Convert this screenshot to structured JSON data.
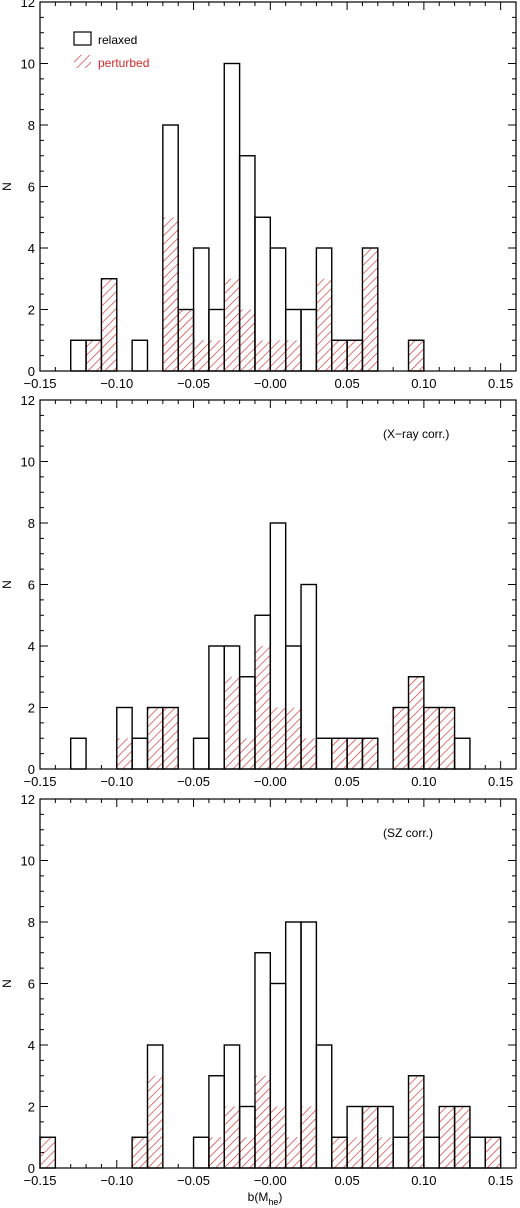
{
  "colors": {
    "relaxed": "#000000",
    "perturbed": "#d42a2a",
    "legend_perturbed_text": "#d42a2a"
  },
  "legend": {
    "relaxed_label": "relaxed",
    "perturbed_label": "perturbed"
  },
  "chart_data": [
    {
      "type": "bar",
      "subtype": "histogram",
      "annotation": "",
      "ylabel": "N",
      "xlabel": "",
      "xlim": [
        -0.15,
        0.16
      ],
      "ylim": [
        0,
        12
      ],
      "xticks": [
        -0.15,
        -0.1,
        -0.05,
        0.0,
        0.05,
        0.1,
        0.15
      ],
      "xtick_labels": [
        "−0.15",
        "−0.10",
        "−0.05",
        "−0.00",
        "0.05",
        "0.10",
        "0.15"
      ],
      "yticks": [
        0,
        2,
        4,
        6,
        8,
        10,
        12
      ],
      "bin_width": 0.01,
      "series": [
        {
          "name": "relaxed",
          "style": "step-outline",
          "bin_starts": [
            -0.13,
            -0.12,
            -0.11,
            -0.09,
            -0.07,
            -0.06,
            -0.05,
            -0.04,
            -0.03,
            -0.02,
            -0.01,
            0.0,
            0.01,
            0.02,
            0.03,
            0.04,
            0.05,
            0.06,
            0.09
          ],
          "values": [
            1,
            1,
            3,
            1,
            8,
            2,
            4,
            2,
            10,
            7,
            5,
            4,
            2,
            2,
            4,
            1,
            1,
            4,
            1
          ]
        },
        {
          "name": "perturbed",
          "style": "hatched",
          "bin_starts": [
            -0.12,
            -0.11,
            -0.07,
            -0.06,
            -0.05,
            -0.04,
            -0.03,
            -0.02,
            -0.01,
            0.0,
            0.01,
            0.03,
            0.04,
            0.05,
            0.06,
            0.09
          ],
          "values": [
            1,
            3,
            5,
            2,
            1,
            1,
            3,
            2,
            1,
            1,
            1,
            3,
            1,
            1,
            4,
            1
          ]
        }
      ]
    },
    {
      "type": "bar",
      "subtype": "histogram",
      "annotation": "(X−ray corr.)",
      "ylabel": "N",
      "xlabel": "",
      "xlim": [
        -0.15,
        0.16
      ],
      "ylim": [
        0,
        12
      ],
      "xticks": [
        -0.15,
        -0.1,
        -0.05,
        0.0,
        0.05,
        0.1,
        0.15
      ],
      "xtick_labels": [
        "−0.15",
        "−0.10",
        "−0.05",
        "−0.00",
        "0.05",
        "0.10",
        "0.15"
      ],
      "yticks": [
        0,
        2,
        4,
        6,
        8,
        10,
        12
      ],
      "bin_width": 0.01,
      "series": [
        {
          "name": "relaxed",
          "style": "step-outline",
          "bin_starts": [
            -0.13,
            -0.1,
            -0.09,
            -0.08,
            -0.07,
            -0.05,
            -0.04,
            -0.03,
            -0.02,
            -0.01,
            0.0,
            0.01,
            0.02,
            0.03,
            0.04,
            0.05,
            0.06,
            0.08,
            0.09,
            0.1,
            0.11,
            0.12
          ],
          "values": [
            1,
            2,
            1,
            2,
            2,
            1,
            4,
            4,
            3,
            5,
            8,
            4,
            6,
            1,
            1,
            1,
            1,
            2,
            3,
            2,
            2,
            1
          ],
          "note": "outline drawn as a step curve; zero-height bins included implicitly"
        },
        {
          "name": "perturbed",
          "style": "hatched",
          "bin_starts": [
            -0.1,
            -0.08,
            -0.07,
            -0.03,
            -0.02,
            -0.01,
            0.0,
            0.01,
            0.02,
            0.04,
            0.05,
            0.06,
            0.08,
            0.09,
            0.1,
            0.11
          ],
          "values": [
            1,
            2,
            2,
            3,
            1,
            4,
            2,
            2,
            1,
            1,
            1,
            1,
            2,
            3,
            2,
            2
          ]
        }
      ]
    },
    {
      "type": "bar",
      "subtype": "histogram",
      "annotation": "(SZ corr.)",
      "ylabel": "N",
      "xlabel": "b(M",
      "xlabel_sub": "he",
      "xlabel_end": ")",
      "xlim": [
        -0.15,
        0.16
      ],
      "ylim": [
        0,
        12
      ],
      "xticks": [
        -0.15,
        -0.1,
        -0.05,
        0.0,
        0.05,
        0.1,
        0.15
      ],
      "xtick_labels": [
        "−0.15",
        "−0.10",
        "−0.05",
        "−0.00",
        "0.05",
        "0.10",
        "0.15"
      ],
      "yticks": [
        0,
        2,
        4,
        6,
        8,
        10,
        12
      ],
      "bin_width": 0.01,
      "series": [
        {
          "name": "relaxed",
          "style": "step-outline",
          "bin_starts": [
            -0.15,
            -0.09,
            -0.08,
            -0.05,
            -0.04,
            -0.03,
            -0.02,
            -0.01,
            0.0,
            0.01,
            0.02,
            0.03,
            0.04,
            0.05,
            0.06,
            0.07,
            0.08,
            0.09,
            0.1,
            0.11,
            0.12,
            0.13,
            0.14
          ],
          "values": [
            1,
            1,
            4,
            1,
            3,
            4,
            2,
            7,
            6,
            8,
            8,
            4,
            1,
            2,
            2,
            2,
            1,
            3,
            1,
            2,
            2,
            1,
            1
          ]
        },
        {
          "name": "perturbed",
          "style": "hatched",
          "bin_starts": [
            -0.15,
            -0.09,
            -0.08,
            -0.04,
            -0.03,
            -0.02,
            -0.01,
            0.0,
            0.01,
            0.02,
            0.04,
            0.05,
            0.06,
            0.07,
            0.09,
            0.11,
            0.12,
            0.14
          ],
          "values": [
            1,
            1,
            3,
            1,
            2,
            1,
            3,
            2,
            1,
            2,
            1,
            1,
            2,
            1,
            3,
            2,
            2,
            1
          ]
        }
      ]
    }
  ]
}
